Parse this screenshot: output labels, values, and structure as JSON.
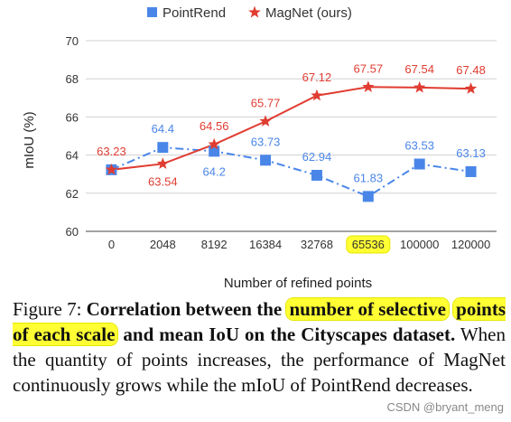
{
  "chart_data": {
    "type": "line",
    "categories": [
      "0",
      "2048",
      "8192",
      "16384",
      "32768",
      "65536",
      "100000",
      "120000"
    ],
    "highlighted_category": "65536",
    "series": [
      {
        "name": "PointRend",
        "color": "#4a86e8",
        "marker": "square",
        "line_style": "dashdot",
        "values": [
          63.23,
          64.4,
          64.2,
          63.73,
          62.94,
          61.83,
          63.53,
          63.13
        ],
        "labels": [
          "",
          "64.4",
          "64.2",
          "63.73",
          "62.94",
          "61.83",
          "63.53",
          "63.13"
        ]
      },
      {
        "name": "MagNet (ours)",
        "color": "#e03c31",
        "marker": "star",
        "line_style": "solid",
        "values": [
          63.23,
          63.54,
          64.56,
          65.77,
          67.12,
          67.57,
          67.54,
          67.48
        ],
        "labels": [
          "63.23",
          "63.54",
          "64.56",
          "65.77",
          "67.12",
          "67.57",
          "67.54",
          "67.48"
        ]
      }
    ],
    "xlabel": "Number of refined points",
    "ylabel": "mIoU (%)",
    "ylim": [
      60,
      70
    ],
    "yticks": [
      60,
      62,
      64,
      66,
      68,
      70
    ],
    "grid": true,
    "legend": "top"
  },
  "caption": {
    "figure_label": "Figure 7:",
    "bold_pre": "Correlation between the",
    "bold_hl1": "number of selective",
    "bold_hl2": "points of each scale",
    "bold_post": "and mean IoU on the Cityscapes dataset.",
    "body": "When the quantity of points increases, the performance of MagNet continuously grows while the mIoU of PointRend decreases."
  },
  "watermark": "CSDN @bryant_meng"
}
